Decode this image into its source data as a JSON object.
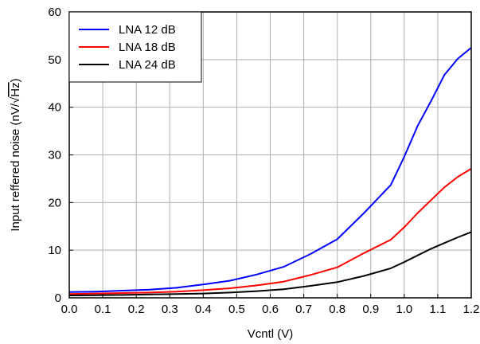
{
  "chart_data": {
    "type": "line",
    "xlabel": "Vcntl (V)",
    "ylabel_prefix": "Input reffered noise (nV/",
    "ylabel_root": "Hz",
    "ylabel_suffix": ")",
    "xlim": [
      0.0,
      1.2
    ],
    "ylim": [
      0,
      60
    ],
    "grid": true,
    "legend_position": "top-left",
    "x_ticks": [
      "0.0",
      "0.1",
      "0.2",
      "0.3",
      "0.4",
      "0.5",
      "0.6",
      "0.7",
      "0.8",
      "0.9",
      "1.0",
      "1.1",
      "1.2"
    ],
    "y_ticks": [
      "0",
      "10",
      "20",
      "30",
      "40",
      "50",
      "60"
    ],
    "x": [
      0.0,
      0.08,
      0.16,
      0.24,
      0.32,
      0.4,
      0.48,
      0.56,
      0.64,
      0.72,
      0.8,
      0.88,
      0.96,
      1.0,
      1.04,
      1.08,
      1.12,
      1.16,
      1.2
    ],
    "series": [
      {
        "name": "LNA 12 dB",
        "color": "#0000ff",
        "values": [
          1.2,
          1.3,
          1.5,
          1.7,
          2.1,
          2.8,
          3.6,
          4.9,
          6.5,
          9.2,
          12.3,
          17.8,
          23.7,
          29.6,
          36.1,
          41.3,
          46.8,
          50.2,
          52.5
        ]
      },
      {
        "name": "LNA 18 dB",
        "color": "#ff0000",
        "values": [
          0.8,
          0.9,
          1.0,
          1.1,
          1.3,
          1.6,
          2.0,
          2.6,
          3.4,
          4.8,
          6.4,
          9.4,
          12.2,
          14.8,
          17.8,
          20.5,
          23.2,
          25.4,
          27.1
        ]
      },
      {
        "name": "LNA 24 dB",
        "color": "#000000",
        "values": [
          0.5,
          0.55,
          0.6,
          0.7,
          0.8,
          0.9,
          1.1,
          1.4,
          1.8,
          2.5,
          3.3,
          4.6,
          6.2,
          7.5,
          8.9,
          10.3,
          11.5,
          12.7,
          13.8
        ]
      }
    ]
  }
}
